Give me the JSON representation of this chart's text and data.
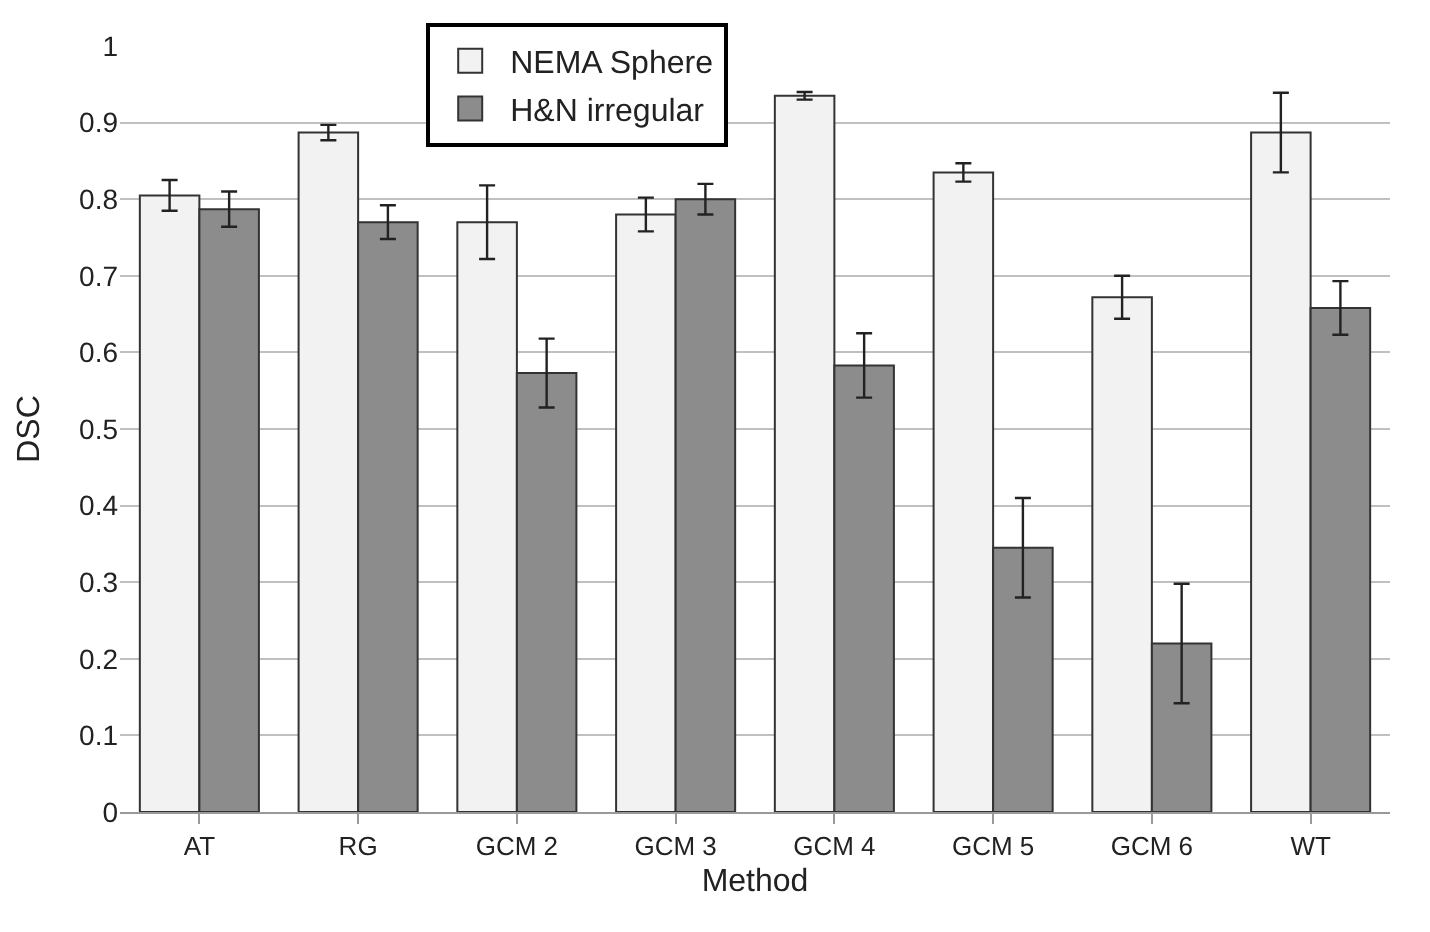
{
  "chart_data": {
    "type": "bar",
    "xlabel": "Method",
    "ylabel": "DSC",
    "categories": [
      "AT",
      "RG",
      "GCM 2",
      "GCM 3",
      "GCM 4",
      "GCM 5",
      "GCM 6",
      "WT"
    ],
    "series": [
      {
        "name": "NEMA Sphere",
        "color": "#f2f2f2",
        "values": [
          0.805,
          0.887,
          0.77,
          0.78,
          0.935,
          0.835,
          0.672,
          0.887
        ],
        "errors": [
          0.02,
          0.01,
          0.048,
          0.022,
          0.005,
          0.012,
          0.028,
          0.052
        ]
      },
      {
        "name": "H&N irregular",
        "color": "#8c8c8c",
        "values": [
          0.787,
          0.77,
          0.573,
          0.8,
          0.583,
          0.345,
          0.22,
          0.658
        ],
        "errors": [
          0.023,
          0.022,
          0.045,
          0.02,
          0.042,
          0.065,
          0.078,
          0.035
        ]
      }
    ],
    "ylim": [
      0,
      1
    ],
    "yticks": [
      0,
      0.1,
      0.2,
      0.3,
      0.4,
      0.5,
      0.6,
      0.7,
      0.8,
      0.9,
      1
    ],
    "grid": "y",
    "legend": "top"
  }
}
